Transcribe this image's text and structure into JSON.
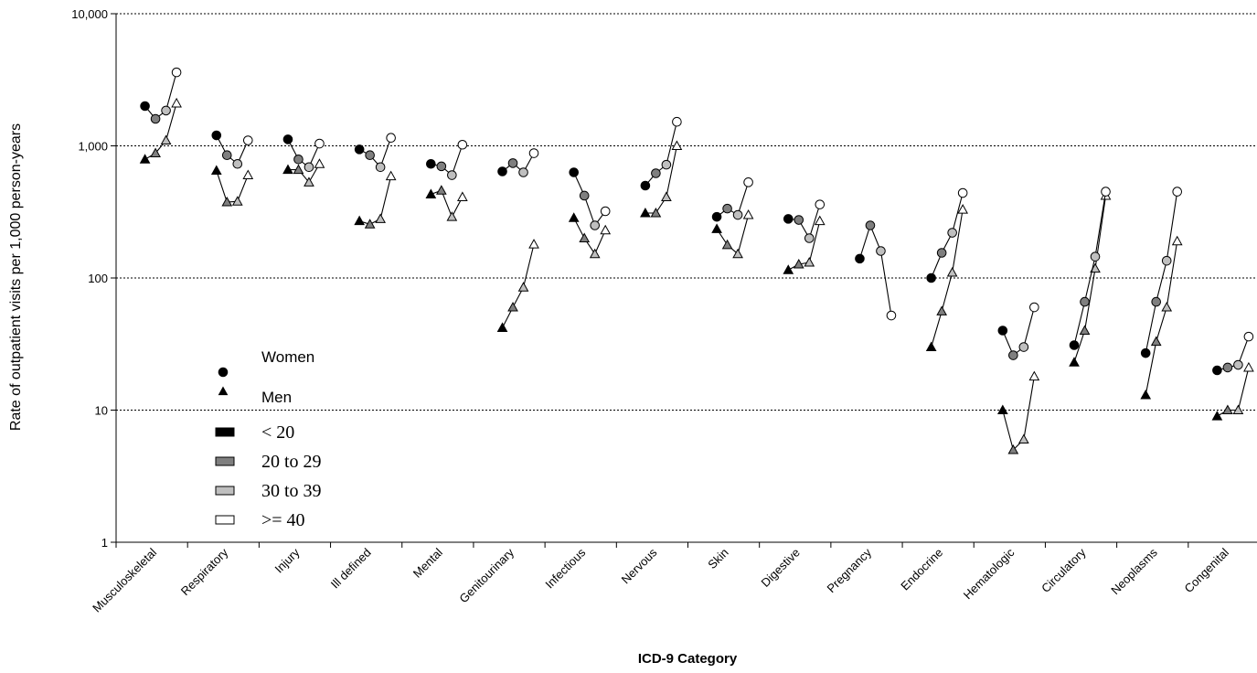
{
  "chart_data": {
    "type": "scatter",
    "xlabel": "ICD-9 Category",
    "ylabel": "Rate of outpatient visits per 1,000 person-years",
    "y_scale": "log",
    "ylim": [
      1,
      10000
    ],
    "y_ticks": [
      {
        "value": 1,
        "label": "1"
      },
      {
        "value": 10,
        "label": "10"
      },
      {
        "value": 100,
        "label": "100"
      },
      {
        "value": 1000,
        "label": "1,000"
      },
      {
        "value": 10000,
        "label": "10,000"
      }
    ],
    "grid": "horizontal dotted",
    "legend": {
      "placement": "lower-left",
      "sex": [
        {
          "label": "Women",
          "marker": "circle"
        },
        {
          "label": "Men",
          "marker": "triangle"
        }
      ],
      "age_groups": [
        {
          "label": "< 20",
          "color": "#000000"
        },
        {
          "label": "20 to 29",
          "color": "#7f7f7f"
        },
        {
          "label": "30 to 39",
          "color": "#bfbfbf"
        },
        {
          "label": ">= 40",
          "color": "#ffffff"
        }
      ]
    },
    "categories": [
      "Musculoskeletal",
      "Respiratory",
      "Injury",
      "Ill defined",
      "Mental",
      "Genitourinary",
      "Infectious",
      "Nervous",
      "Skin",
      "Digestive",
      "Pregnancy",
      "Endocrine",
      "Hematologic",
      "Circulatory",
      "Neoplasms",
      "Congenital"
    ],
    "series": [
      {
        "name": "Women",
        "age_groups": [
          "< 20",
          "20 to 29",
          "30 to 39",
          ">= 40"
        ],
        "values": [
          [
            2000,
            1600,
            1850,
            3600
          ],
          [
            1200,
            850,
            730,
            1100
          ],
          [
            1120,
            790,
            690,
            1040
          ],
          [
            940,
            850,
            690,
            1150
          ],
          [
            730,
            700,
            600,
            1020
          ],
          [
            640,
            740,
            630,
            880
          ],
          [
            630,
            420,
            250,
            320
          ],
          [
            500,
            620,
            720,
            1520
          ],
          [
            290,
            335,
            300,
            530
          ],
          [
            280,
            275,
            200,
            360
          ],
          [
            140,
            250,
            160,
            52
          ],
          [
            100,
            155,
            220,
            440
          ],
          [
            40,
            26,
            30,
            60
          ],
          [
            31,
            66,
            145,
            450
          ],
          [
            27,
            66,
            135,
            450
          ],
          [
            20,
            21,
            22,
            36
          ]
        ]
      },
      {
        "name": "Men",
        "age_groups": [
          "< 20",
          "20 to 29",
          "30 to 39",
          ">= 40"
        ],
        "values": [
          [
            790,
            880,
            1100,
            2100
          ],
          [
            650,
            375,
            380,
            600
          ],
          [
            660,
            660,
            530,
            730
          ],
          [
            270,
            255,
            280,
            590
          ],
          [
            430,
            460,
            290,
            410
          ],
          [
            42,
            60,
            85,
            180
          ],
          [
            285,
            200,
            152,
            230
          ],
          [
            310,
            310,
            410,
            1000
          ],
          [
            235,
            178,
            152,
            300
          ],
          [
            115,
            127,
            131,
            270
          ],
          [
            null,
            null,
            null,
            null
          ],
          [
            30,
            56,
            110,
            330
          ],
          [
            10,
            5,
            6,
            18
          ],
          [
            23,
            40,
            118,
            420
          ],
          [
            13,
            33,
            60,
            190
          ],
          [
            9,
            10,
            10,
            21
          ]
        ]
      }
    ]
  }
}
